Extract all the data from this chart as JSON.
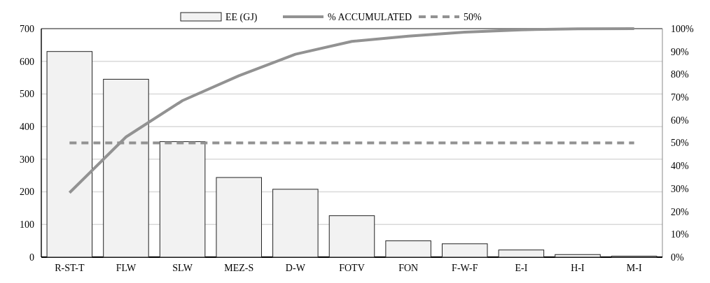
{
  "chart_data": {
    "type": "bar",
    "categories": [
      "R-ST-T",
      "FLW",
      "SLW",
      "MEZ-S",
      "D-W",
      "FOTV",
      "FON",
      "F-W-F",
      "E-I",
      "H-I",
      "M-I"
    ],
    "series": [
      {
        "name": "EE (GJ)",
        "color": "#f2f2f2",
        "values": [
          630,
          545,
          354,
          244,
          208,
          127,
          50,
          41,
          22,
          8,
          3
        ]
      },
      {
        "name": "% ACCUMULATED",
        "type": "line",
        "axis": "y2",
        "color": "#929292",
        "line_style": "solid",
        "values": [
          28.2,
          52.6,
          68.5,
          79.4,
          88.8,
          94.4,
          96.7,
          98.5,
          99.5,
          99.9,
          100
        ]
      },
      {
        "name": "50%",
        "type": "line",
        "axis": "y2",
        "color": "#929292",
        "line_style": "dashed",
        "values": [
          50,
          50,
          50,
          50,
          50,
          50,
          50,
          50,
          50,
          50,
          50
        ]
      }
    ],
    "ylim": [
      0,
      700
    ],
    "yticks": [
      0,
      100,
      200,
      300,
      400,
      500,
      600,
      700
    ],
    "y2lim": [
      0,
      100
    ],
    "y2ticks": [
      {
        "value": 0,
        "label": "0%"
      },
      {
        "value": 10,
        "label": "10%"
      },
      {
        "value": 20,
        "label": "20%"
      },
      {
        "value": 30,
        "label": "30%"
      },
      {
        "value": 40,
        "label": "40%"
      },
      {
        "value": 50,
        "label": "50%"
      },
      {
        "value": 60,
        "label": "60%"
      },
      {
        "value": 70,
        "label": "70%"
      },
      {
        "value": 80,
        "label": "80%"
      },
      {
        "value": 90,
        "label": "90%"
      },
      {
        "value": 100,
        "label": "100%"
      }
    ],
    "grid": "y",
    "legend": "top"
  }
}
